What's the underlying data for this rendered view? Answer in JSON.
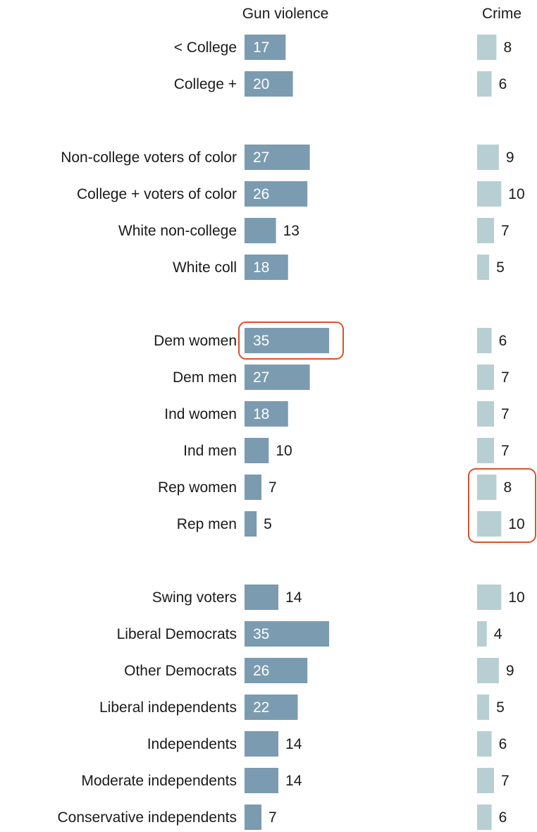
{
  "chart_data": {
    "type": "bar",
    "orientation": "horizontal",
    "columns": [
      {
        "name": "Gun violence",
        "color": "#7b9bb1",
        "xlim": [
          0,
          35
        ]
      },
      {
        "name": "Crime",
        "color": "#b7cfd3",
        "xlim": [
          0,
          10
        ]
      }
    ],
    "groups": [
      {
        "categories": [
          "< College",
          "College +"
        ],
        "series": [
          {
            "name": "Gun violence",
            "values": [
              17,
              20
            ]
          },
          {
            "name": "Crime",
            "values": [
              8,
              6
            ]
          }
        ]
      },
      {
        "categories": [
          "Non-college voters of color",
          "College + voters of color",
          "White non-college",
          "White coll"
        ],
        "series": [
          {
            "name": "Gun violence",
            "values": [
              27,
              26,
              13,
              18
            ]
          },
          {
            "name": "Crime",
            "values": [
              9,
              10,
              7,
              5
            ]
          }
        ]
      },
      {
        "categories": [
          "Dem women",
          "Dem men",
          "Ind women",
          "Ind men",
          "Rep women",
          "Rep men"
        ],
        "series": [
          {
            "name": "Gun violence",
            "values": [
              35,
              27,
              18,
              10,
              7,
              5
            ]
          },
          {
            "name": "Crime",
            "values": [
              6,
              7,
              7,
              7,
              8,
              10
            ]
          }
        ]
      },
      {
        "categories": [
          "Swing voters",
          "Liberal Democrats",
          "Other Democrats",
          "Liberal independents",
          "Independents",
          "Moderate independents",
          "Conservative independents"
        ],
        "series": [
          {
            "name": "Gun violence",
            "values": [
              14,
              35,
              26,
              22,
              14,
              14,
              7
            ]
          },
          {
            "name": "Crime",
            "values": [
              10,
              4,
              9,
              5,
              6,
              7,
              6
            ]
          }
        ]
      }
    ],
    "highlights": [
      {
        "column": "Gun violence",
        "categories": [
          "Dem women"
        ],
        "color": "#d9532b"
      },
      {
        "column": "Crime",
        "categories": [
          "Rep women",
          "Rep men"
        ],
        "color": "#d9532b"
      }
    ]
  }
}
